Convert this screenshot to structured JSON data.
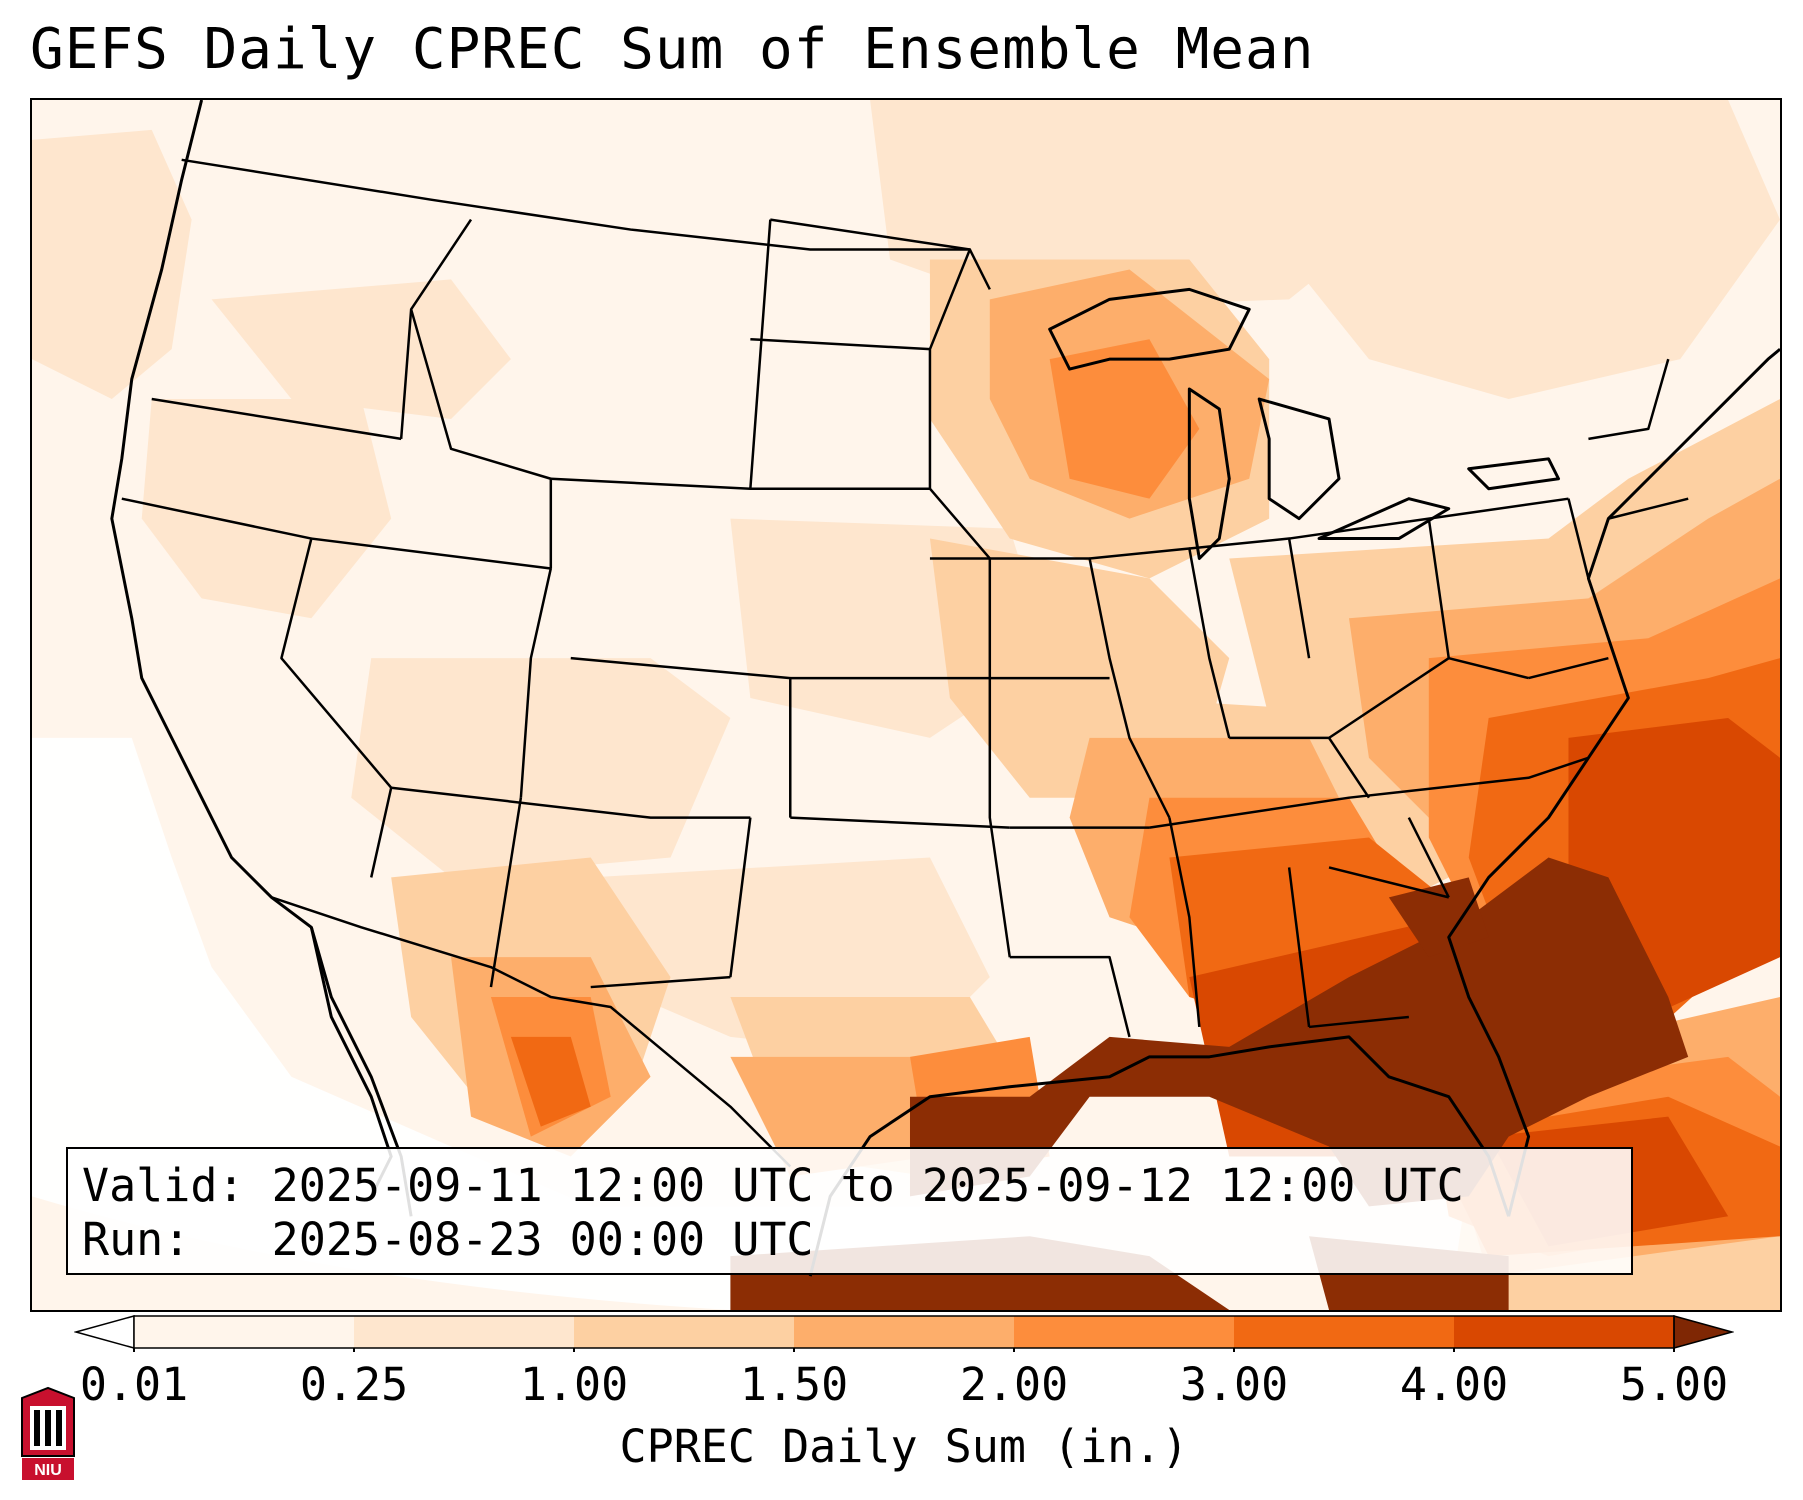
{
  "title": "GEFS Daily CPREC Sum of Ensemble Mean",
  "info": {
    "valid_label": "Valid:",
    "valid_value": "2025-09-11 12:00 UTC to 2025-09-12 12:00 UTC",
    "run_label": "Run:",
    "run_value": "2025-08-23 00:00 UTC"
  },
  "colorbar": {
    "label": "CPREC Daily Sum (in.)",
    "ticks": [
      "0.01",
      "0.25",
      "1.00",
      "1.50",
      "2.00",
      "3.00",
      "4.00",
      "5.00"
    ],
    "colors": [
      "#fff5eb",
      "#fee6ce",
      "#fdd0a2",
      "#fdae6b",
      "#fd8d3c",
      "#f16913",
      "#d94801",
      "#8c2d04"
    ],
    "under_color": "#ffffff",
    "over_color": "#7f2704",
    "extend": "both"
  },
  "logo": {
    "text": "NIU",
    "colors": {
      "primary": "#c8102e",
      "secondary": "#000000"
    }
  },
  "map": {
    "region": "Contiguous United States",
    "projection": "Lambert Conformal"
  }
}
